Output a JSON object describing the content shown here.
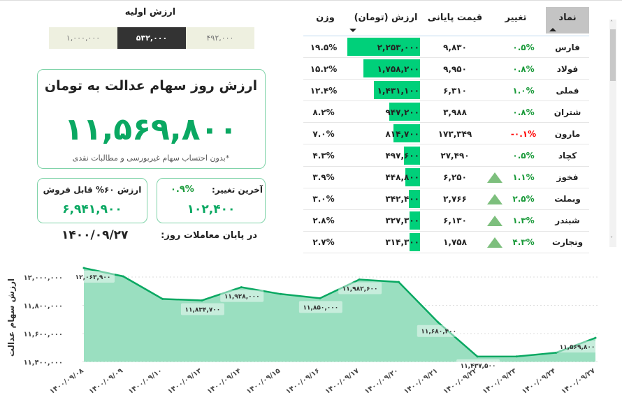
{
  "initial_value": {
    "title": "ارزش اولیه",
    "options": [
      "۱,۰۰۰,۰۰۰",
      "۵۳۲,۰۰۰",
      "۴۹۲,۰۰۰"
    ],
    "selected": 1
  },
  "main_card": {
    "title": "ارزش روز سهام عدالت به تومان",
    "value": "۱۱,۵۶۹,۸۰۰",
    "note": "*بدون احتساب سهام غیربورسی و مطالبات نقدی"
  },
  "sellable_card": {
    "title": "ارزش ۶۰% قابل فروش",
    "value": "۶,۹۴۱,۹۰۰"
  },
  "change_card": {
    "title": "آخرین تغییر:",
    "percent": "۰.۹%",
    "value": "۱۰۲,۴۰۰"
  },
  "end_of_day": {
    "label": "در پایان معاملات روز:",
    "date": "۱۴۰۰/۰۹/۲۷"
  },
  "table": {
    "headers": {
      "symbol": "نماد",
      "change": "تغییر",
      "close": "قیمت پایانی",
      "value": "ارزش (تومان)",
      "weight": "وزن"
    },
    "sort": {
      "symbol": "ascending",
      "value": "descending"
    },
    "rows": [
      {
        "symbol": "فارس",
        "change": "۰.۵%",
        "up": false,
        "close": "۹,۸۳۰",
        "value": "۲,۲۵۳,۰۰۰",
        "amount": 2253000,
        "weight": "۱۹.۵%"
      },
      {
        "symbol": "فولاد",
        "change": "۰.۸%",
        "up": false,
        "close": "۹,۹۵۰",
        "value": "۱,۷۵۸,۲۰۰",
        "amount": 1758200,
        "weight": "۱۵.۲%"
      },
      {
        "symbol": "فملی",
        "change": "۱.۰%",
        "up": false,
        "close": "۶,۳۱۰",
        "value": "۱,۴۳۱,۱۰۰",
        "amount": 1431100,
        "weight": "۱۲.۴%"
      },
      {
        "symbol": "شتران",
        "change": "۰.۸%",
        "up": false,
        "close": "۳,۹۸۸",
        "value": "۹۴۷,۲۰۰",
        "amount": 947200,
        "weight": "۸.۲%"
      },
      {
        "symbol": "مارون",
        "change": "-۰.۱%",
        "up": false,
        "negative": true,
        "close": "۱۷۳,۳۴۹",
        "value": "۸۱۴,۷۰۰",
        "amount": 814700,
        "weight": "۷.۰%"
      },
      {
        "symbol": "کچاد",
        "change": "۰.۵%",
        "up": false,
        "close": "۲۷,۴۹۰",
        "value": "۴۹۷,۶۰۰",
        "amount": 497600,
        "weight": "۴.۳%"
      },
      {
        "symbol": "فخوز",
        "change": "۱.۱%",
        "up": true,
        "close": "۶,۲۵۰",
        "value": "۴۴۸,۸۰۰",
        "amount": 448800,
        "weight": "۳.۹%"
      },
      {
        "symbol": "وبملت",
        "change": "۲.۵%",
        "up": true,
        "close": "۲,۷۶۶",
        "value": "۳۴۲,۴۰۰",
        "amount": 342400,
        "weight": "۳.۰%"
      },
      {
        "symbol": "شبندر",
        "change": "۱.۳%",
        "up": true,
        "close": "۶,۱۳۰",
        "value": "۳۲۷,۳۰۰",
        "amount": 327300,
        "weight": "۲.۸%"
      },
      {
        "symbol": "وتجارت",
        "change": "۴.۳%",
        "up": true,
        "close": "۱,۷۵۸",
        "value": "۳۱۴,۳۰۰",
        "amount": 314300,
        "weight": "۲.۷%"
      }
    ]
  },
  "colors": {
    "positive": "#1a9a3a",
    "negative": "#ff0000",
    "bar": "#00d07a",
    "accent": "#0aa862",
    "area": "#9adfc0",
    "line": "#0aa862"
  },
  "chart_data": {
    "type": "area",
    "ylabel": "ارزش سهام عدالت",
    "ylim": [
      11400000,
      12080000
    ],
    "yticks": [
      {
        "v": 12000000,
        "label": "۱۲,۰۰۰,۰۰۰"
      },
      {
        "v": 11800000,
        "label": "۱۱,۸۰۰,۰۰۰"
      },
      {
        "v": 11600000,
        "label": "۱۱,۶۰۰,۰۰۰"
      },
      {
        "v": 11400000,
        "label": "۱۱,۴۰۰,۰۰۰"
      }
    ],
    "grid": "horizontal-dotted",
    "x": [
      "۱۴۰۰/۰۹/۰۸",
      "۱۴۰۰/۰۹/۰۹",
      "۱۴۰۰/۰۹/۱۰",
      "۱۴۰۰/۰۹/۱۳",
      "۱۴۰۰/۰۹/۱۴",
      "۱۴۰۰/۰۹/۱۵",
      "۱۴۰۰/۰۹/۱۶",
      "۱۴۰۰/۰۹/۱۷",
      "۱۴۰۰/۰۹/۲۰",
      "۱۴۰۰/۰۹/۲۱",
      "۱۴۰۰/۰۹/۲۲",
      "۱۴۰۰/۰۹/۲۳",
      "۱۴۰۰/۰۹/۲۴",
      "۱۴۰۰/۰۹/۲۷"
    ],
    "values": [
      12063900,
      12005000,
      11845000,
      11834700,
      11928000,
      11880000,
      11850000,
      11982600,
      11965000,
      11680400,
      11437500,
      11438000,
      11465000,
      11569800
    ],
    "data_labels": [
      {
        "i": 0,
        "label": "۱۲,۰۶۳,۹۰۰"
      },
      {
        "i": 3,
        "label": "۱۱,۸۳۴,۷۰۰"
      },
      {
        "i": 4,
        "label": "۱۱,۹۲۸,۰۰۰"
      },
      {
        "i": 6,
        "label": "۱۱,۸۵۰,۰۰۰"
      },
      {
        "i": 7,
        "label": "۱۱,۹۸۲,۶۰۰"
      },
      {
        "i": 9,
        "label": "۱۱,۶۸۰,۴۰۰"
      },
      {
        "i": 10,
        "label": "۱۱,۴۳۷,۵۰۰"
      },
      {
        "i": 13,
        "label": "۱۱,۵۶۹,۸۰۰"
      }
    ]
  }
}
